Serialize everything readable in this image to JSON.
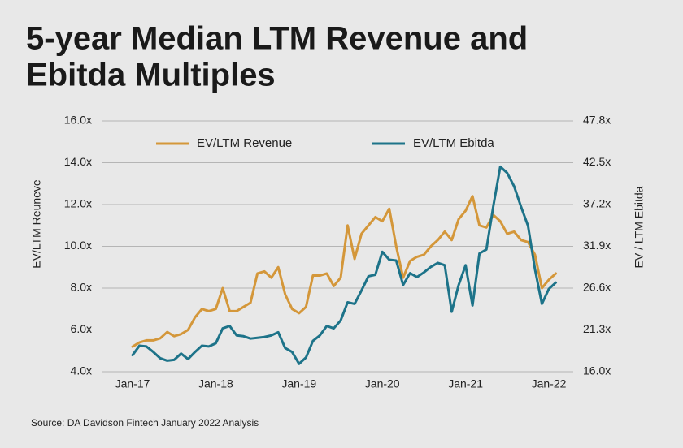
{
  "chart_data": {
    "type": "line",
    "title": [
      "5-year Median LTM Revenue and",
      "Ebitda Multiples"
    ],
    "y_label": "EV/LTM Reuneve",
    "y2_label": "EV / LTM Ebitda",
    "source": "Source: DA Davidson Fintech January 2022 Analysis",
    "categories": [
      "Jan-17",
      null,
      null,
      null,
      null,
      null,
      null,
      null,
      null,
      null,
      null,
      null,
      "Jan-18",
      null,
      null,
      null,
      null,
      null,
      null,
      null,
      null,
      null,
      null,
      null,
      "Jan-19",
      null,
      null,
      null,
      null,
      null,
      null,
      null,
      null,
      null,
      null,
      null,
      "Jan-20",
      null,
      null,
      null,
      null,
      null,
      null,
      null,
      null,
      null,
      null,
      null,
      "Jan-21",
      null,
      null,
      null,
      null,
      null,
      null,
      null,
      null,
      null,
      null,
      null,
      "Jan-22",
      null
    ],
    "series": [
      {
        "name": "EV/LTM Revenue",
        "color": "#d4973a",
        "axis": "y",
        "values": [
          5.2,
          5.4,
          5.5,
          5.5,
          5.6,
          5.9,
          5.7,
          5.8,
          6.0,
          6.6,
          7.0,
          6.9,
          7.0,
          8.0,
          6.9,
          6.9,
          7.1,
          7.3,
          8.7,
          8.8,
          8.5,
          9.0,
          7.7,
          7.0,
          6.8,
          7.1,
          8.6,
          8.6,
          8.7,
          8.1,
          8.5,
          11.0,
          9.4,
          10.6,
          11.0,
          11.4,
          11.2,
          11.8,
          10.0,
          8.5,
          9.3,
          9.5,
          9.6,
          10.0,
          10.3,
          10.7,
          10.3,
          11.3,
          11.7,
          12.4,
          11.0,
          10.9,
          11.5,
          11.2,
          10.6,
          10.7,
          10.3,
          10.2,
          9.6,
          8.0,
          8.4,
          8.7
        ]
      },
      {
        "name": "EV/LTM Ebitda",
        "color": "#1d7389",
        "axis": "y2",
        "values": [
          18.1,
          19.3,
          19.2,
          18.5,
          17.7,
          17.4,
          17.5,
          18.3,
          17.6,
          18.5,
          19.3,
          19.2,
          19.6,
          21.5,
          21.8,
          20.6,
          20.5,
          20.2,
          20.3,
          20.4,
          20.6,
          21.0,
          19.0,
          18.5,
          17.0,
          17.8,
          19.9,
          20.6,
          21.8,
          21.5,
          22.5,
          24.8,
          24.6,
          26.3,
          28.1,
          28.3,
          31.2,
          30.2,
          30.1,
          27.0,
          28.5,
          28.0,
          28.6,
          29.3,
          29.8,
          29.5,
          23.6,
          27.0,
          29.5,
          24.4,
          31.0,
          31.5,
          37.0,
          42.0,
          41.2,
          39.5,
          36.9,
          34.5,
          29.0,
          24.6,
          26.5,
          27.3
        ]
      }
    ],
    "ylim": [
      4,
      16
    ],
    "yticks": [
      {
        "value": 4,
        "label": "4.0x"
      },
      {
        "value": 6,
        "label": "6.0x"
      },
      {
        "value": 8,
        "label": "8.0x"
      },
      {
        "value": 10,
        "label": "10.0x"
      },
      {
        "value": 12,
        "label": "12.0x"
      },
      {
        "value": 14,
        "label": "14.0x"
      },
      {
        "value": 16,
        "label": "16.0x"
      }
    ],
    "y2lim": [
      16,
      47.8
    ],
    "y2ticks": [
      {
        "value": 16,
        "label": "16.0x"
      },
      {
        "value": 21.3,
        "label": "21.3x"
      },
      {
        "value": 26.6,
        "label": "26.6x"
      },
      {
        "value": 31.9,
        "label": "31.9x"
      },
      {
        "value": 37.2,
        "label": "37.2x"
      },
      {
        "value": 42.5,
        "label": "42.5x"
      },
      {
        "value": 47.8,
        "label": "47.8x"
      }
    ],
    "grid": true,
    "legend": "top"
  }
}
